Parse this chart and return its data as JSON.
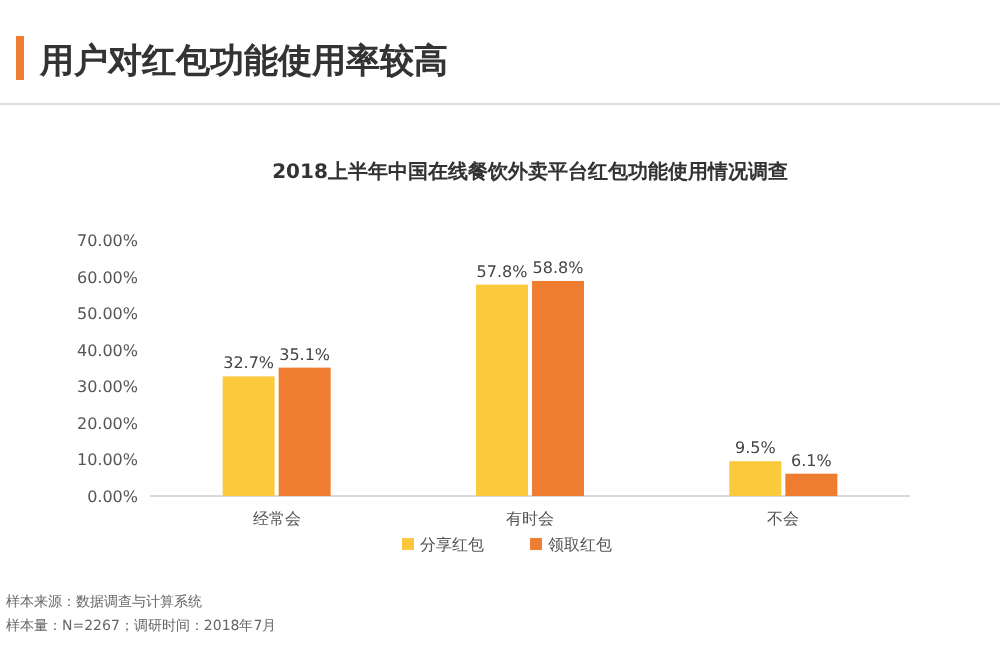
{
  "chart_data": {
    "type": "bar",
    "title": "用户对红包功能使用率较高",
    "subtitle": "2018上半年中国在线餐饮外卖平台红包功能使用情况调查",
    "categories": [
      "经常会",
      "有时会",
      "不会"
    ],
    "series": [
      {
        "name": "分享红包",
        "color": "#fac93c",
        "values": [
          32.7,
          57.8,
          9.5
        ],
        "value_labels": [
          "32.7%",
          "57.8%",
          "9.5%"
        ]
      },
      {
        "name": "领取红包",
        "color": "#ee7d32",
        "values": [
          35.1,
          58.8,
          6.1
        ],
        "value_labels": [
          "35.1%",
          "58.8%",
          "6.1%"
        ]
      }
    ],
    "ylim": [
      0,
      70
    ],
    "yticks": [
      {
        "value": 0,
        "label": "0.00%"
      },
      {
        "value": 10,
        "label": "10.00%"
      },
      {
        "value": 20,
        "label": "20.00%"
      },
      {
        "value": 30,
        "label": "30.00%"
      },
      {
        "value": 40,
        "label": "40.00%"
      },
      {
        "value": 50,
        "label": "50.00%"
      },
      {
        "value": 60,
        "label": "60.00%"
      },
      {
        "value": 70,
        "label": "70.00%"
      }
    ],
    "grid": false,
    "legend": "bottom",
    "annotations": [
      "样本来源：数据调查与计算系统",
      "样本量：N=2267；调研时间：2018年7月"
    ]
  }
}
